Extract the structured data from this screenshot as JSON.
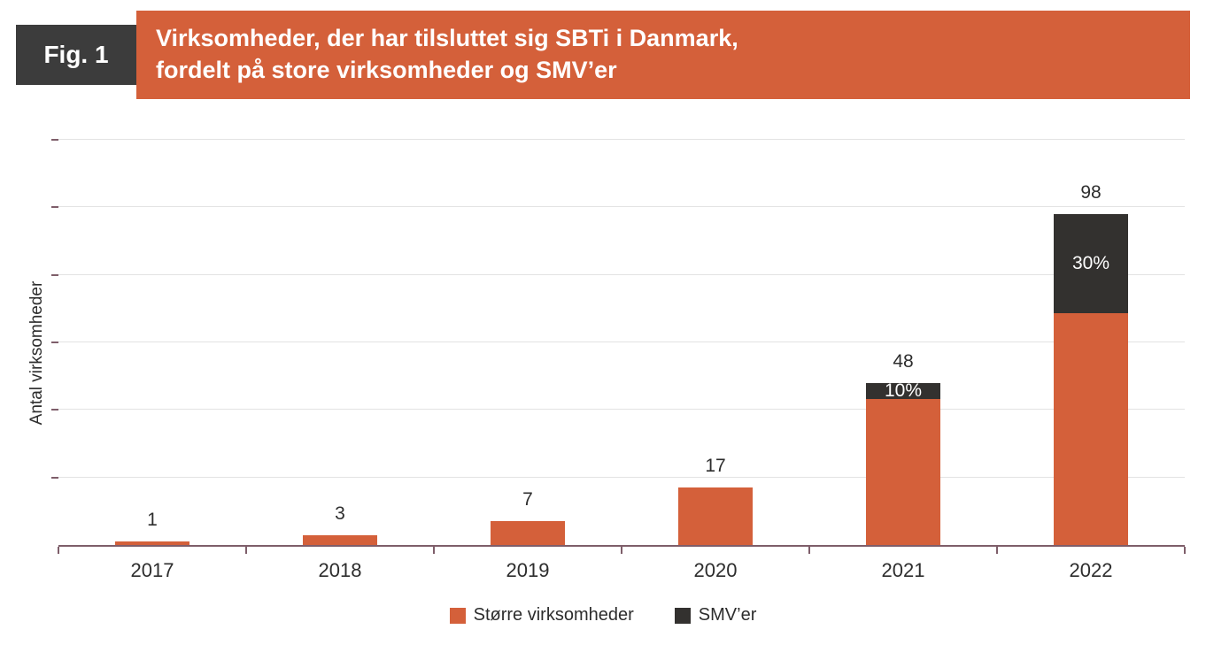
{
  "header": {
    "fig_label": "Fig. 1",
    "title_line1": "Virksomheder, der har tilsluttet sig SBTi i Danmark,",
    "title_line2": "fordelt på store virksomheder og SMV’er"
  },
  "chart_data": {
    "type": "bar",
    "stacked": true,
    "title": "Virksomheder, der har tilsluttet sig SBTi i Danmark, fordelt på store virksomheder og SMV’er",
    "categories": [
      "2017",
      "2018",
      "2019",
      "2020",
      "2021",
      "2022"
    ],
    "series": [
      {
        "name": "Større virksomheder",
        "color": "#d4603a",
        "values": [
          1,
          3,
          7,
          17,
          43.2,
          68.6
        ]
      },
      {
        "name": "SMV’er",
        "color": "#33312f",
        "values": [
          0,
          0,
          0,
          0,
          4.8,
          29.4
        ]
      }
    ],
    "totals": [
      1,
      3,
      7,
      17,
      48,
      98
    ],
    "segment_labels": [
      "",
      "",
      "",
      "",
      "10%",
      "30%"
    ],
    "xlabel": "",
    "ylabel": "Antal virksomheder",
    "ylim": [
      0,
      120
    ],
    "grid_step": 20,
    "grid": true,
    "legend_position": "bottom"
  },
  "legend": {
    "items": [
      {
        "label": "Større virksomheder",
        "color": "#d4603a"
      },
      {
        "label": "SMV’er",
        "color": "#33312f"
      }
    ]
  },
  "colors": {
    "accent_orange": "#d4603a",
    "dark": "#33312f",
    "fig_box": "#3c3c3c",
    "axis": "#7e5e6a",
    "gridline": "#e3e3e3"
  }
}
